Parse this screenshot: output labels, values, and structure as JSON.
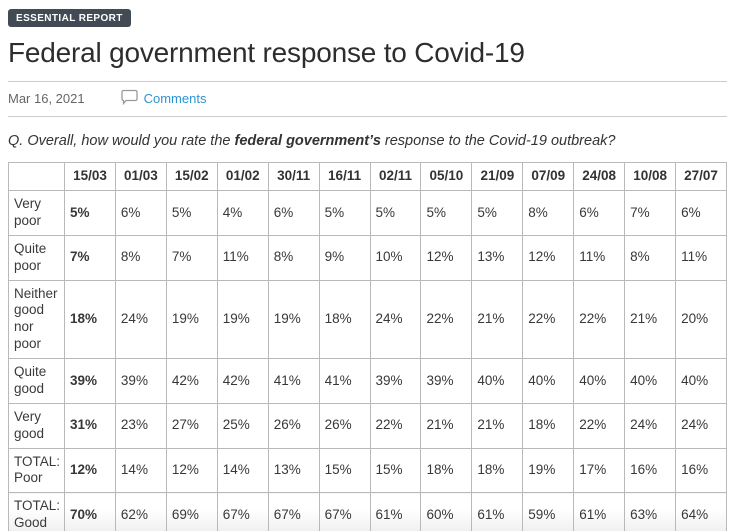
{
  "header": {
    "badge": "ESSENTIAL REPORT",
    "title": "Federal government response to Covid-19",
    "date": "Mar 16, 2021",
    "comments_label": "Comments",
    "comment_icon": "speech-bubble-icon"
  },
  "question": {
    "prefix": "Q. Overall, how would you rate the ",
    "bold": "federal government’s",
    "suffix": " response to the Covid-19 outbreak?"
  },
  "chart_data": {
    "type": "table",
    "columns": [
      "15/03",
      "01/03",
      "15/02",
      "01/02",
      "30/11",
      "16/11",
      "02/11",
      "05/10",
      "21/09",
      "07/09",
      "24/08",
      "10/08",
      "27/07"
    ],
    "rows": [
      {
        "label": "Very poor",
        "values": [
          "5%",
          "6%",
          "5%",
          "4%",
          "6%",
          "5%",
          "5%",
          "5%",
          "5%",
          "8%",
          "6%",
          "7%",
          "6%"
        ]
      },
      {
        "label": "Quite poor",
        "values": [
          "7%",
          "8%",
          "7%",
          "11%",
          "8%",
          "9%",
          "10%",
          "12%",
          "13%",
          "12%",
          "11%",
          "8%",
          "11%"
        ]
      },
      {
        "label": "Neither good nor poor",
        "values": [
          "18%",
          "24%",
          "19%",
          "19%",
          "19%",
          "18%",
          "24%",
          "22%",
          "21%",
          "22%",
          "22%",
          "21%",
          "20%"
        ]
      },
      {
        "label": "Quite good",
        "values": [
          "39%",
          "39%",
          "42%",
          "42%",
          "41%",
          "41%",
          "39%",
          "39%",
          "40%",
          "40%",
          "40%",
          "40%",
          "40%"
        ]
      },
      {
        "label": "Very good",
        "values": [
          "31%",
          "23%",
          "27%",
          "25%",
          "26%",
          "26%",
          "22%",
          "21%",
          "21%",
          "18%",
          "22%",
          "24%",
          "24%"
        ]
      },
      {
        "label": "TOTAL: Poor",
        "values": [
          "12%",
          "14%",
          "12%",
          "14%",
          "13%",
          "15%",
          "15%",
          "18%",
          "18%",
          "19%",
          "17%",
          "16%",
          "16%"
        ]
      },
      {
        "label": "TOTAL: Good",
        "values": [
          "70%",
          "62%",
          "69%",
          "67%",
          "67%",
          "67%",
          "61%",
          "60%",
          "61%",
          "59%",
          "61%",
          "63%",
          "64%"
        ]
      }
    ],
    "notes": "First data column (15/03) rendered bold; header dates bold"
  },
  "colors": {
    "badge_bg": "#414a55",
    "link_blue": "#2d95d3",
    "table_border": "#b9b9b9",
    "rule_gray": "#cccccc",
    "text_dark": "#2d2d2d",
    "text_meta": "#666666"
  }
}
